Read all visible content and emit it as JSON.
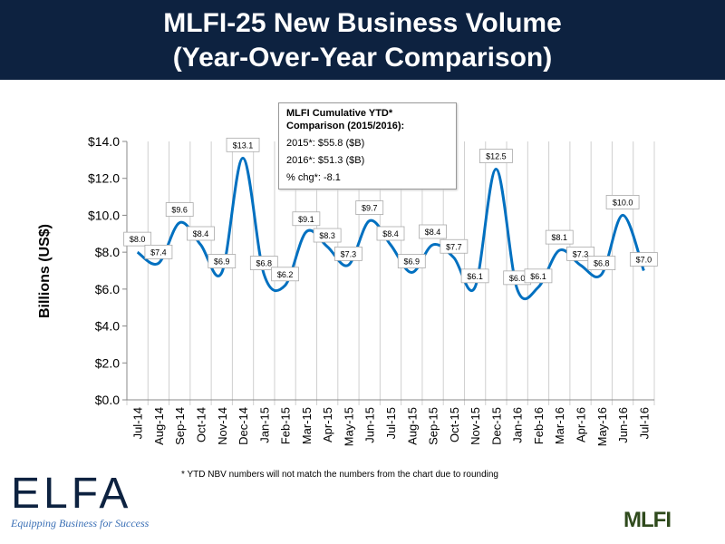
{
  "header": {
    "title_line1": "MLFI-25 New Business Volume",
    "title_line2": "(Year-Over-Year Comparison)"
  },
  "callout": {
    "title1": "MLFI Cumulative YTD*",
    "title2": "Comparison (2015/2016):",
    "line1": "2015*: $55.8 ($B)",
    "line2": "2016*: $51.3  ($B)",
    "line3": "% chg*: -8.1"
  },
  "footnote": "*  YTD NBV numbers will not match the numbers from the chart due to rounding",
  "logos": {
    "elfa": "ELFA",
    "elfa_tagline": "Equipping Business for Success",
    "mlfi": "MLFI"
  },
  "chart_data": {
    "type": "line",
    "title": "MLFI-25 New Business Volume (Year-Over-Year Comparison)",
    "xlabel": "",
    "ylabel": "Billions (US$)",
    "ylim": [
      0,
      14
    ],
    "yticks": [
      "$0.0",
      "$2.0",
      "$4.0",
      "$6.0",
      "$8.0",
      "$10.0",
      "$12.0",
      "$14.0"
    ],
    "categories": [
      "Jul-14",
      "Aug-14",
      "Sep-14",
      "Oct-14",
      "Nov-14",
      "Dec-14",
      "Jan-15",
      "Feb-15",
      "Mar-15",
      "Apr-15",
      "May-15",
      "Jun-15",
      "Jul-15",
      "Aug-15",
      "Sep-15",
      "Oct-15",
      "Nov-15",
      "Dec-15",
      "Jan-16",
      "Feb-16",
      "Mar-16",
      "Apr-16",
      "May-16",
      "Jun-16",
      "Jul-16"
    ],
    "values": [
      8.0,
      7.4,
      9.6,
      8.4,
      6.9,
      13.1,
      6.8,
      6.2,
      9.1,
      8.3,
      7.3,
      9.7,
      8.4,
      6.9,
      8.4,
      7.7,
      6.1,
      12.5,
      6.0,
      6.1,
      8.1,
      7.3,
      6.8,
      10.0,
      7.0
    ],
    "labels": [
      "$8.0",
      "$7.4",
      "$9.6",
      "$8.4",
      "$6.9",
      "$13.1",
      "$6.8",
      "$6.2",
      "$9.1",
      "$8.3",
      "$7.3",
      "$9.7",
      "$8.4",
      "$6.9",
      "$8.4",
      "$7.7",
      "$6.1",
      "$12.5",
      "$6.0",
      "$6.1",
      "$8.1",
      "$7.3",
      "$6.8",
      "$10.0",
      "$7.0"
    ],
    "line_color": "#0070c0"
  }
}
